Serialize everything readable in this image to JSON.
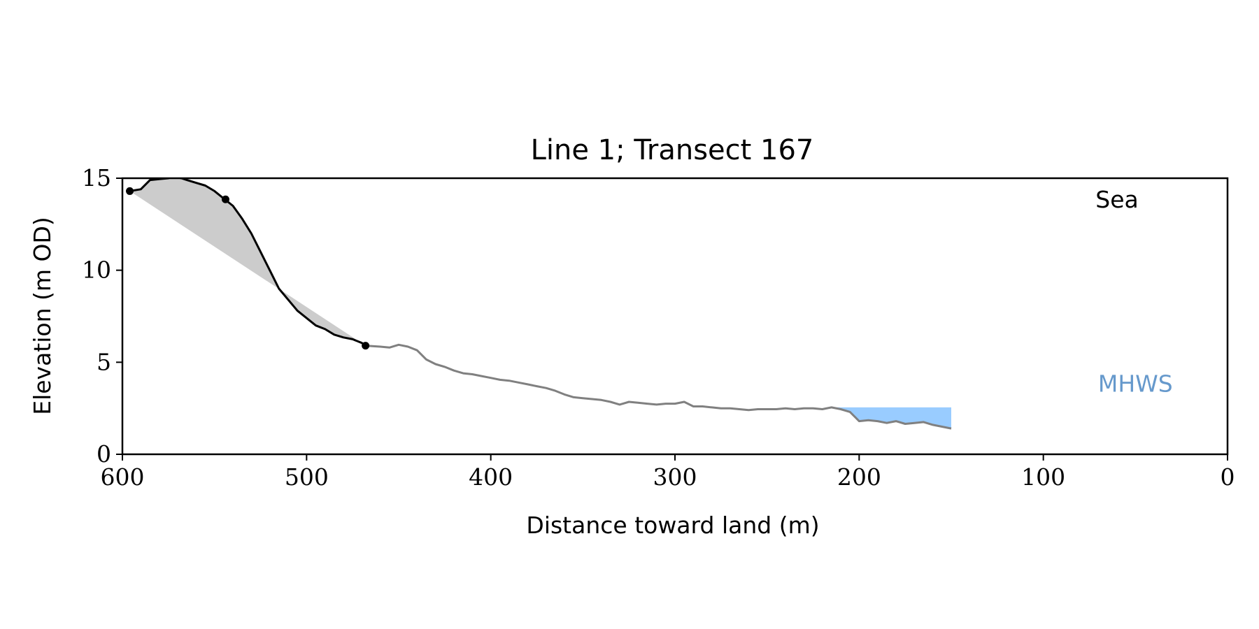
{
  "chart_data": {
    "type": "line",
    "title": "Line 1; Transect 167",
    "xlabel": "Distance toward land (m)",
    "ylabel": "Elevation (m OD)",
    "xlim": [
      600,
      0
    ],
    "ylim": [
      0,
      15
    ],
    "x_ticks": [
      600,
      500,
      400,
      300,
      200,
      100,
      0
    ],
    "y_ticks": [
      0,
      5,
      10,
      15
    ],
    "grid": false,
    "annotations": [
      {
        "text": "Sea",
        "x": 60,
        "y": 13.4,
        "color": "#000000"
      },
      {
        "text": "MHWS",
        "x": 50,
        "y": 3.4,
        "color": "#6699cc"
      }
    ],
    "mhws_level": 2.55,
    "colors": {
      "cliff": "#000000",
      "profile": "#808080",
      "fill_area": "#cccccc",
      "water": "#99ccff"
    },
    "series": [
      {
        "role": "cliff-profile",
        "x": [
          596,
          590,
          585,
          580,
          575,
          572,
          568,
          565,
          560,
          555,
          550,
          545,
          540,
          535,
          530,
          525,
          520,
          515,
          510,
          505,
          500,
          495,
          490,
          485,
          480,
          475,
          470,
          468
        ],
        "y": [
          14.3,
          14.4,
          14.9,
          14.95,
          15.0,
          15.1,
          15.0,
          14.9,
          14.75,
          14.6,
          14.3,
          13.9,
          13.5,
          12.8,
          12.0,
          11.0,
          10.0,
          9.0,
          8.4,
          7.8,
          7.4,
          7.0,
          6.8,
          6.5,
          6.35,
          6.25,
          6.05,
          5.9
        ]
      },
      {
        "role": "shore-profile",
        "x": [
          468,
          460,
          455,
          450,
          445,
          440,
          435,
          430,
          425,
          420,
          415,
          410,
          405,
          400,
          395,
          390,
          385,
          380,
          375,
          370,
          365,
          360,
          355,
          350,
          345,
          340,
          335,
          330,
          325,
          320,
          315,
          310,
          305,
          300,
          295,
          290,
          285,
          280,
          275,
          270,
          265,
          260,
          255,
          250,
          245,
          240,
          235,
          230,
          225,
          220,
          215,
          210,
          205,
          202,
          200,
          195,
          190,
          185,
          180,
          175,
          170,
          165,
          160,
          155,
          150
        ],
        "y": [
          5.9,
          5.85,
          5.8,
          5.95,
          5.85,
          5.65,
          5.15,
          4.9,
          4.75,
          4.55,
          4.4,
          4.35,
          4.25,
          4.15,
          4.05,
          4.0,
          3.9,
          3.8,
          3.7,
          3.6,
          3.45,
          3.25,
          3.1,
          3.05,
          3.0,
          2.95,
          2.85,
          2.7,
          2.85,
          2.8,
          2.75,
          2.7,
          2.75,
          2.75,
          2.85,
          2.6,
          2.6,
          2.55,
          2.5,
          2.5,
          2.45,
          2.4,
          2.45,
          2.45,
          2.45,
          2.5,
          2.45,
          2.5,
          2.5,
          2.45,
          2.55,
          2.45,
          2.3,
          2.0,
          1.8,
          1.85,
          1.8,
          1.7,
          1.8,
          1.65,
          1.7,
          1.75,
          1.6,
          1.5,
          1.4
        ]
      }
    ],
    "markers": [
      {
        "x": 596,
        "y": 14.3
      },
      {
        "x": 544,
        "y": 13.85
      },
      {
        "x": 468,
        "y": 5.9
      }
    ]
  }
}
